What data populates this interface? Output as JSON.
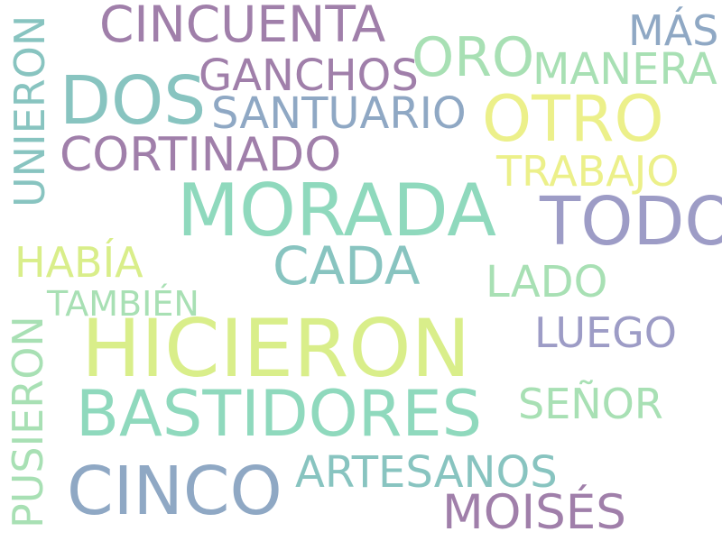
{
  "colors": {
    "background": "#ffffff",
    "purple": "#a07faa",
    "teal": "#88c4c0",
    "mint": "#8fd9bd",
    "light_green": "#a8e0b4",
    "yellow_green": "#d9ee8a",
    "yellow": "#ecf08a",
    "blue_gray": "#8fa8c4",
    "lavender": "#9d9cc6"
  },
  "words": [
    {
      "text": "HICIERON",
      "color": "yellow_green"
    },
    {
      "text": "MORADA",
      "color": "mint"
    },
    {
      "text": "BASTIDORES",
      "color": "mint"
    },
    {
      "text": "TODO",
      "color": "lavender"
    },
    {
      "text": "CINCO",
      "color": "blue_gray"
    },
    {
      "text": "DOS",
      "color": "teal"
    },
    {
      "text": "OTRO",
      "color": "yellow"
    },
    {
      "text": "CADA",
      "color": "teal"
    },
    {
      "text": "CINCUENTA",
      "color": "purple"
    },
    {
      "text": "MOISÉS",
      "color": "purple"
    },
    {
      "text": "ORO",
      "color": "light_green"
    },
    {
      "text": "CORTINADO",
      "color": "purple"
    },
    {
      "text": "GANCHOS",
      "color": "purple"
    },
    {
      "text": "SANTUARIO",
      "color": "blue_gray"
    },
    {
      "text": "ARTESANOS",
      "color": "teal"
    },
    {
      "text": "LADO",
      "color": "light_green"
    },
    {
      "text": "LUEGO",
      "color": "lavender"
    },
    {
      "text": "SEÑOR",
      "color": "light_green"
    },
    {
      "text": "TRABAJO",
      "color": "yellow"
    },
    {
      "text": "MANERA",
      "color": "light_green"
    },
    {
      "text": "MÁS",
      "color": "blue_gray"
    },
    {
      "text": "HABÍA",
      "color": "yellow_green"
    },
    {
      "text": "TAMBIÉN",
      "color": "light_green"
    },
    {
      "text": "UNIERON",
      "color": "teal"
    },
    {
      "text": "PUSIERON",
      "color": "light_green"
    }
  ]
}
